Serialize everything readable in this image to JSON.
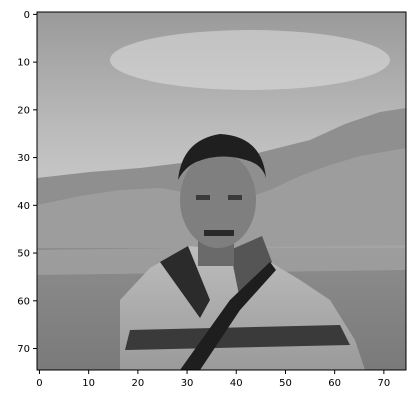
{
  "chart_data": {
    "type": "heatmap",
    "description_type": "image_plot",
    "colormap": "gray",
    "xlim": [
      -0.5,
      74.5
    ],
    "ylim": [
      74.5,
      -0.5
    ],
    "x_ticks": [
      0,
      10,
      20,
      30,
      40,
      50,
      60,
      70
    ],
    "y_ticks": [
      0,
      10,
      20,
      30,
      40,
      50,
      60,
      70
    ],
    "x_tick_labels": [
      "0",
      "10",
      "20",
      "30",
      "40",
      "50",
      "60",
      "70"
    ],
    "y_tick_labels": [
      "0",
      "10",
      "20",
      "30",
      "40",
      "50",
      "60",
      "70"
    ],
    "title": "",
    "xlabel": "",
    "ylabel": "",
    "grid": false
  }
}
